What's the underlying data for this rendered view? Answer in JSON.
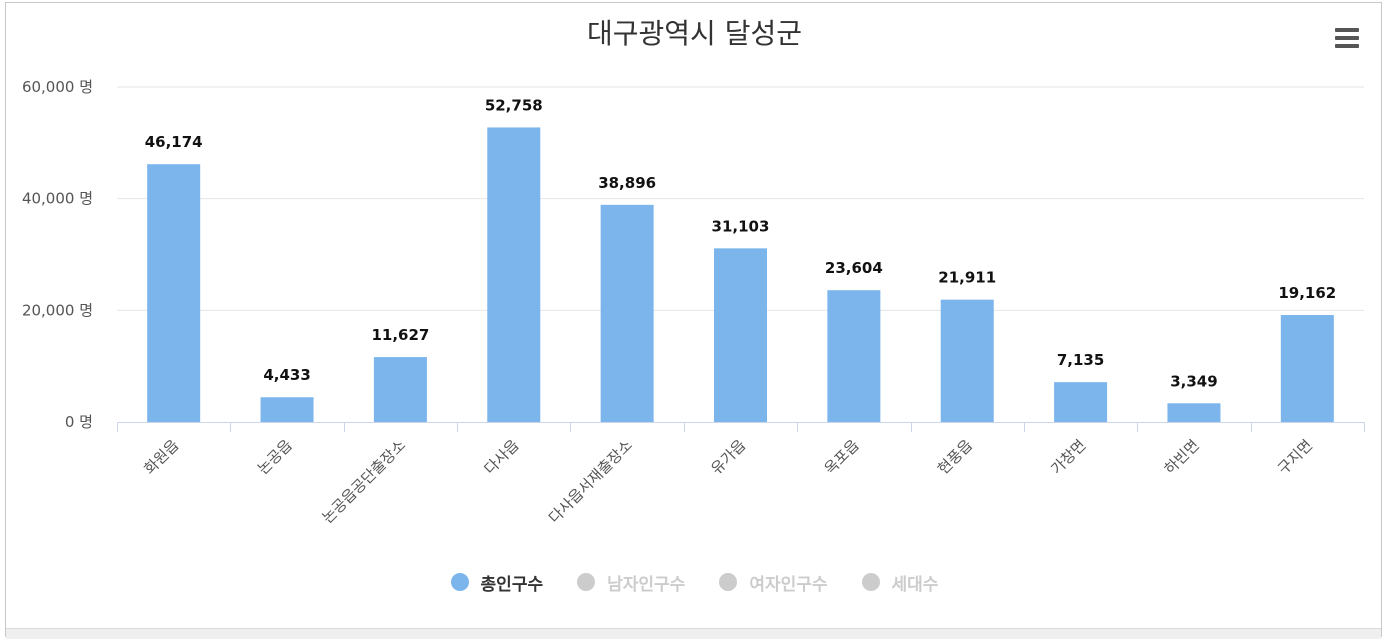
{
  "chart_data": {
    "type": "bar",
    "title": "대구광역시 달성군",
    "categories": [
      "화원읍",
      "논공읍",
      "논공읍공단출장소",
      "다사읍",
      "다사읍서재출장소",
      "유가읍",
      "옥포읍",
      "현풍읍",
      "가창면",
      "하빈면",
      "구지면"
    ],
    "series": [
      {
        "name": "총인구수",
        "values": [
          46174,
          4433,
          11627,
          52758,
          38896,
          31103,
          23604,
          21911,
          7135,
          3349,
          19162
        ],
        "visible": true
      }
    ],
    "data_labels": [
      "46,174",
      "4,433",
      "11,627",
      "52,758",
      "38,896",
      "31,103",
      "23,604",
      "21,911",
      "7,135",
      "3,349",
      "19,162"
    ],
    "ylim": [
      0,
      60000
    ],
    "yticks": [
      0,
      20000,
      40000,
      60000
    ],
    "ytick_labels": [
      "0 명",
      "20,000 명",
      "40,000 명",
      "60,000 명"
    ],
    "grid": true,
    "legend_position": "bottom-center",
    "bar_color": "#7cb5ec"
  },
  "legend": [
    {
      "label": "총인구수",
      "color": "#7cb5ec",
      "active": true
    },
    {
      "label": "남자인구수",
      "color": "#cccccc",
      "active": false
    },
    {
      "label": "여자인구수",
      "color": "#cccccc",
      "active": false
    },
    {
      "label": "세대수",
      "color": "#cccccc",
      "active": false
    }
  ],
  "menu_icon": "hamburger-menu-icon"
}
